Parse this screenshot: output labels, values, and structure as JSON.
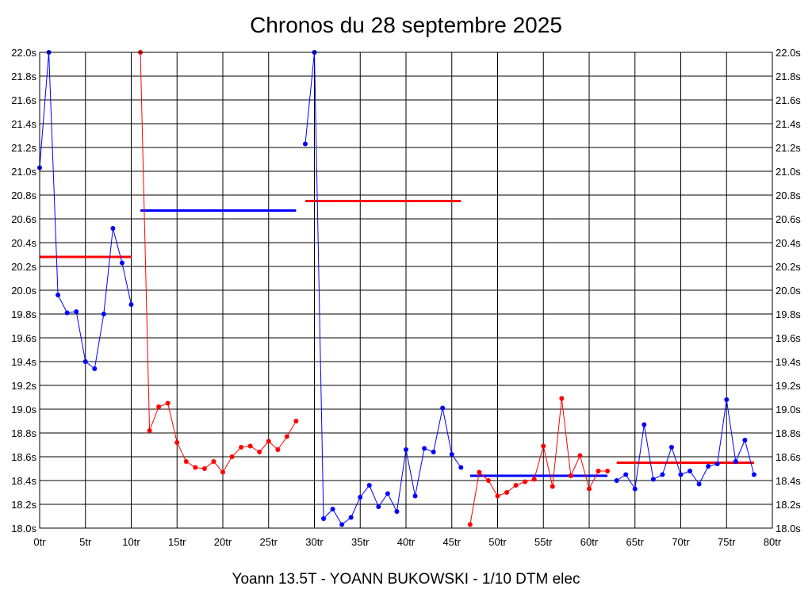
{
  "chart_data": {
    "type": "line",
    "title": "Chronos du 28 septembre 2025",
    "footer": "Yoann 13.5T - YOANN BUKOWSKI - 1/10 DTM elec",
    "xlim": [
      0,
      80
    ],
    "ylim": [
      18.0,
      22.0
    ],
    "xticks": [
      "0tr",
      "5tr",
      "10tr",
      "15tr",
      "20tr",
      "25tr",
      "30tr",
      "35tr",
      "40tr",
      "45tr",
      "50tr",
      "55tr",
      "60tr",
      "65tr",
      "70tr",
      "75tr",
      "80tr"
    ],
    "yticks": [
      "18.0s",
      "18.2s",
      "18.4s",
      "18.6s",
      "18.8s",
      "19.0s",
      "19.2s",
      "19.4s",
      "19.6s",
      "19.8s",
      "20.0s",
      "20.2s",
      "20.4s",
      "20.6s",
      "20.8s",
      "21.0s",
      "21.2s",
      "21.4s",
      "21.6s",
      "21.8s",
      "22.0s"
    ],
    "grid": true,
    "series": [
      {
        "color": "#0000ff",
        "x": [
          0,
          1,
          2,
          3,
          4,
          5,
          6,
          7,
          8,
          9,
          10
        ],
        "y": [
          21.03,
          22.0,
          19.96,
          19.81,
          19.82,
          19.4,
          19.34,
          19.8,
          20.52,
          20.23,
          19.88
        ]
      },
      {
        "color": "#ff0000",
        "x": [
          11,
          12,
          13,
          14,
          15,
          16,
          17,
          18,
          19,
          20,
          21,
          22,
          23,
          24,
          25,
          26,
          27,
          28
        ],
        "y": [
          22.0,
          18.82,
          19.02,
          19.05,
          18.72,
          18.56,
          18.51,
          18.5,
          18.56,
          18.47,
          18.6,
          18.68,
          18.69,
          18.64,
          18.73,
          18.66,
          18.77,
          18.9
        ]
      },
      {
        "color": "#0000ff",
        "x": [
          29,
          30,
          31,
          32,
          33,
          34,
          35,
          36,
          37,
          38,
          39,
          40,
          41,
          42,
          43,
          44,
          45,
          46
        ],
        "y": [
          21.23,
          22.0,
          18.08,
          18.16,
          18.03,
          18.09,
          18.26,
          18.36,
          18.18,
          18.29,
          18.14,
          18.66,
          18.27,
          18.67,
          18.64,
          19.01,
          18.62,
          18.51
        ]
      },
      {
        "color": "#ff0000",
        "x": [
          47,
          48,
          49,
          50,
          51,
          52,
          53,
          54,
          55,
          56,
          57,
          58,
          59,
          60,
          61,
          62
        ],
        "y": [
          18.03,
          18.47,
          18.4,
          18.27,
          18.3,
          18.36,
          18.39,
          18.41,
          18.69,
          18.35,
          19.09,
          18.44,
          18.61,
          18.33,
          18.48,
          18.48
        ]
      },
      {
        "color": "#0000ff",
        "x": [
          63,
          64,
          65,
          66,
          67,
          68,
          69,
          70,
          71,
          72,
          73,
          74,
          75,
          76,
          77,
          78
        ],
        "y": [
          18.4,
          18.45,
          18.33,
          18.87,
          18.41,
          18.45,
          18.68,
          18.45,
          18.48,
          18.37,
          18.52,
          18.54,
          19.08,
          18.56,
          18.74,
          18.45
        ]
      }
    ],
    "averages": [
      {
        "color": "#ff0000",
        "x": [
          0,
          10
        ],
        "y": 20.28
      },
      {
        "color": "#0000ff",
        "x": [
          11,
          28
        ],
        "y": 20.67
      },
      {
        "color": "#ff0000",
        "x": [
          29,
          46
        ],
        "y": 20.75
      },
      {
        "color": "#0000ff",
        "x": [
          47,
          62
        ],
        "y": 18.44
      },
      {
        "color": "#ff0000",
        "x": [
          63,
          78
        ],
        "y": 18.55
      }
    ]
  }
}
